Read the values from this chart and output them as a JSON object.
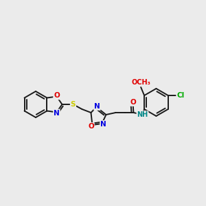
{
  "background_color": "#ebebeb",
  "bond_color": "#1a1a1a",
  "atom_colors": {
    "N": "#0000e0",
    "O": "#e00000",
    "S": "#cccc00",
    "Cl": "#00aa00",
    "C": "#1a1a1a",
    "H": "#008888"
  },
  "figsize": [
    3.0,
    3.0
  ],
  "dpi": 100,
  "bond_lw": 1.4,
  "fontsize": 7.5
}
